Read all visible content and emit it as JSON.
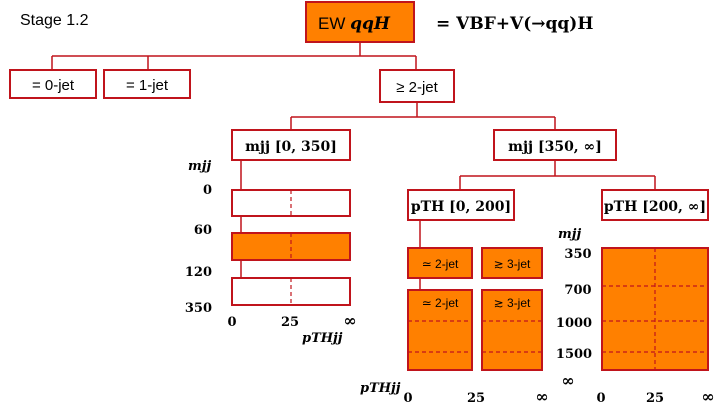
{
  "stage_label": "Stage 1.2",
  "root": {
    "label_prefix": "EW ",
    "label_math": "qqH",
    "definition": "= VBF+V(→qq)H"
  },
  "level1": {
    "zero_jet": "= 0-jet",
    "one_jet": "= 1-jet",
    "two_jet": "≥ 2-jet"
  },
  "mjj_boxes": {
    "low": "mjj [0, 350]",
    "high": "mjj [350, ∞]"
  },
  "ptH_boxes": {
    "low": "pTH [0, 200]",
    "high": "pTH [200, ∞]"
  },
  "jet_labels": {
    "two_jet_a": "≃ 2-jet",
    "three_jet_a": "≳ 3-jet",
    "two_jet_b": "≃ 2-jet",
    "three_jet_b": "≳ 3-jet"
  },
  "axis": {
    "mjj_title": "mjj",
    "mjj_left_ticks": [
      "0",
      "60",
      "120",
      "350"
    ],
    "mjj_right_ticks": [
      "350",
      "700",
      "1000",
      "1500",
      "∞"
    ],
    "pt_title": "pTHjj",
    "pt_left_ticks": [
      "0",
      "25",
      "∞"
    ],
    "pt_mid_ticks": [
      "0",
      "25",
      "∞"
    ],
    "pt_right_ticks": [
      "0",
      "25",
      "∞"
    ]
  },
  "colors": {
    "fill": "#ff8000",
    "border": "#c0141c"
  }
}
